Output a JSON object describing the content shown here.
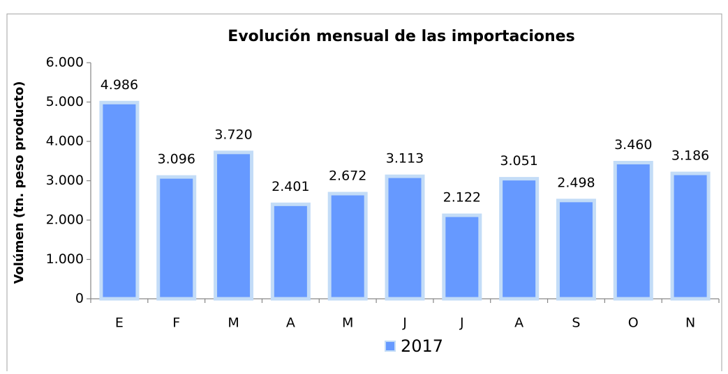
{
  "chart_data": {
    "type": "bar",
    "title": "Evolución mensual de las importaciones",
    "ylabel": "Volúmen (tn. peso producto)",
    "categories": [
      "E",
      "F",
      "M",
      "A",
      "M",
      "J",
      "J",
      "A",
      "S",
      "O",
      "N"
    ],
    "series": [
      {
        "name": "2017",
        "color": "#6699ff",
        "values": [
          4986,
          3096,
          3720,
          2401,
          2672,
          3113,
          2122,
          3051,
          2498,
          3460,
          3186
        ],
        "value_labels": [
          "4.986",
          "3.096",
          "3.720",
          "2.401",
          "2.672",
          "3.113",
          "2.122",
          "3.051",
          "2.498",
          "3.460",
          "3.186"
        ]
      }
    ],
    "ylim": [
      0,
      6000
    ],
    "yticks": [
      0,
      {
        "value": 1000,
        "label": "1.000"
      },
      {
        "value": 2000,
        "label": "2.000"
      },
      {
        "value": 3000,
        "label": "3.000"
      },
      {
        "value": 4000,
        "label": "4.000"
      },
      {
        "value": 5000,
        "label": "5.000"
      },
      {
        "value": 6000,
        "label": "6.000"
      }
    ],
    "legend": "bottom"
  }
}
